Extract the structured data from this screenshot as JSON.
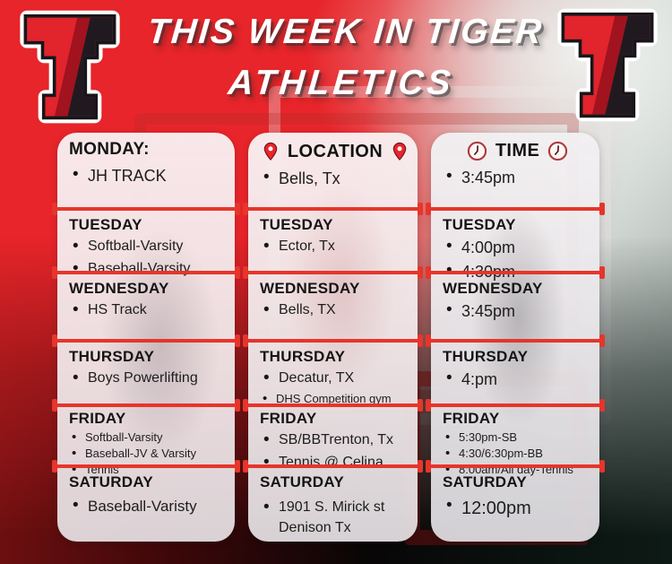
{
  "header": {
    "title_line1": "THIS WEEK IN TIGER",
    "title_line2": "ATHLETICS",
    "logo": "tiger-t-logo"
  },
  "columns": [
    {
      "name": "events",
      "header": null,
      "rows": [
        {
          "heading": "MONDAY:",
          "items": [
            "JH TRACK"
          ]
        },
        {
          "heading": "TUESDAY",
          "items": [
            "Softball-Varsity",
            "Baseball-Varsity"
          ]
        },
        {
          "heading": "WEDNESDAY",
          "items": [
            "HS Track"
          ]
        },
        {
          "heading": "THURSDAY",
          "items": [
            "Boys Powerlifting"
          ]
        },
        {
          "heading": "FRIDAY",
          "items": [
            "Softball-Varsity",
            "Baseball-JV & Varsity",
            "Tennis"
          ]
        },
        {
          "heading": "SATURDAY",
          "items": [
            "Baseball-Varisty"
          ]
        }
      ]
    },
    {
      "name": "location",
      "header": {
        "label": "LOCATION",
        "icon": "location-pin-icon"
      },
      "rows": [
        {
          "heading": null,
          "items": [
            "Bells, Tx"
          ]
        },
        {
          "heading": "TUESDAY",
          "items": [
            "Ector, Tx"
          ]
        },
        {
          "heading": "WEDNESDAY",
          "items": [
            "Bells, TX"
          ]
        },
        {
          "heading": "THURSDAY",
          "items": [
            "Decatur, TX",
            "DHS Competition gym"
          ]
        },
        {
          "heading": "FRIDAY",
          "items": [
            "SB/BBTrenton, Tx",
            "Tennis @ Celina"
          ]
        },
        {
          "heading": "SATURDAY",
          "items": [
            "1901 S. Mirick st Denison Tx"
          ]
        }
      ]
    },
    {
      "name": "time",
      "header": {
        "label": "TIME",
        "icon": "clock-icon"
      },
      "rows": [
        {
          "heading": null,
          "items": [
            "3:45pm"
          ]
        },
        {
          "heading": "TUESDAY",
          "items": [
            "4:00pm",
            "4:30pm"
          ]
        },
        {
          "heading": "WEDNESDAY",
          "items": [
            "3:45pm"
          ]
        },
        {
          "heading": "THURSDAY",
          "items": [
            "4:pm"
          ]
        },
        {
          "heading": "FRIDAY",
          "items": [
            "5:30pm-SB",
            "4:30/6:30pm-BB",
            "8:00am/All day-Tennis"
          ]
        },
        {
          "heading": "SATURDAY",
          "items": [
            "12:00pm"
          ]
        }
      ]
    }
  ],
  "colors": {
    "accent_red": "#e6352b",
    "background_red": "#e7252a",
    "background_light": "#ccd3cf",
    "panel": "#f2e9ea",
    "title_text": "#ffffff",
    "text": "#1d1d1d",
    "logo_red": "#e2242c",
    "logo_black": "#17161a"
  }
}
